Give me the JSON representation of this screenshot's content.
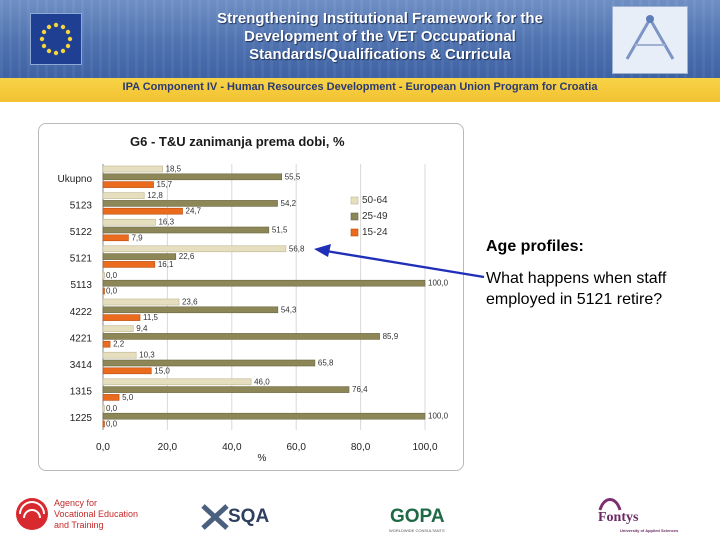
{
  "header": {
    "title_lines": [
      "Strengthening Institutional Framework for the",
      "Development of the VET Occupational",
      "Standards/Qualifications & Curricula"
    ],
    "subtitle": "IPA Component IV - Human Resources Development - European Union Program for Croatia"
  },
  "annotation": {
    "title": "Age profiles:",
    "text": "What happens when staff employed in 5121 retire?"
  },
  "footer": {
    "logo1_text": [
      "Agency for",
      "Vocational Education",
      "and Training"
    ],
    "logo2_text": "SQA",
    "logo3_text": "GOPA",
    "logo3_sub": "WORLDWIDE CONSULTANTS",
    "logo4_text": "Fontys",
    "logo4_sub": "University of Applied Sciences"
  },
  "colors": {
    "series_50_64": "#e6dfbf",
    "series_25_49": "#8d8758",
    "series_15_24": "#ea6a1e",
    "arrow": "#1f2fb8"
  },
  "chart_data": {
    "type": "bar",
    "orientation": "horizontal",
    "title": "G6 - T&U zanimanja prema dobi, %",
    "xlabel": "%",
    "ylabel": "",
    "xlim": [
      0,
      100
    ],
    "x_ticks": [
      "0,0",
      "20,0",
      "40,0",
      "60,0",
      "80,0",
      "100,0"
    ],
    "categories": [
      "Ukupno",
      "5123",
      "5122",
      "5121",
      "5113",
      "4222",
      "4221",
      "3414",
      "1315",
      "1225"
    ],
    "legend_position": "right",
    "series": [
      {
        "name": "50-64",
        "values": [
          18.5,
          12.8,
          16.3,
          56.8,
          0.0,
          23.6,
          9.4,
          10.3,
          46.0,
          0.0
        ],
        "labels": [
          "18,5",
          "12,8",
          "16,3",
          "56,8",
          "0,0",
          "23,6",
          "9,4",
          "10,3",
          "46,0",
          "0,0"
        ]
      },
      {
        "name": "25-49",
        "values": [
          55.5,
          54.2,
          51.5,
          22.6,
          100.0,
          54.3,
          85.9,
          65.8,
          76.4,
          100.0
        ],
        "labels": [
          "55,5",
          "54,2",
          "51,5",
          "22,6",
          "100,0",
          "54,3",
          "85,9",
          "65,8",
          "76,4",
          "100,0"
        ]
      },
      {
        "name": "15-24",
        "values": [
          15.7,
          24.7,
          7.9,
          16.1,
          0.0,
          11.5,
          2.2,
          15.0,
          5.0,
          0.0
        ],
        "labels": [
          "15,7",
          "24,7",
          "7,9",
          "16,1",
          "0,0",
          "11,5",
          "2,2",
          "15,0",
          "5,0",
          "0,0"
        ]
      }
    ]
  }
}
